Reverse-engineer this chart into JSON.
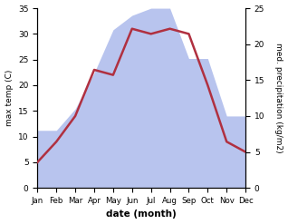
{
  "months": [
    "Jan",
    "Feb",
    "Mar",
    "Apr",
    "May",
    "Jun",
    "Jul",
    "Aug",
    "Sep",
    "Oct",
    "Nov",
    "Dec"
  ],
  "temperature": [
    5,
    9,
    14,
    23,
    22,
    31,
    30,
    31,
    30,
    20,
    9,
    7
  ],
  "precipitation": [
    8,
    8,
    11,
    16,
    22,
    24,
    25,
    25,
    18,
    18,
    10,
    10
  ],
  "temp_color": "#b03040",
  "precip_fill_color": "#b8c4ee",
  "temp_ylim": [
    0,
    35
  ],
  "precip_ylim": [
    0,
    25
  ],
  "temp_yticks": [
    0,
    5,
    10,
    15,
    20,
    25,
    30,
    35
  ],
  "precip_yticks": [
    0,
    5,
    10,
    15,
    20,
    25
  ],
  "xlabel": "date (month)",
  "ylabel_left": "max temp (C)",
  "ylabel_right": "med. precipitation (kg/m2)",
  "background_color": "#ffffff",
  "line_width": 1.8,
  "figsize": [
    3.18,
    2.47
  ],
  "dpi": 100
}
